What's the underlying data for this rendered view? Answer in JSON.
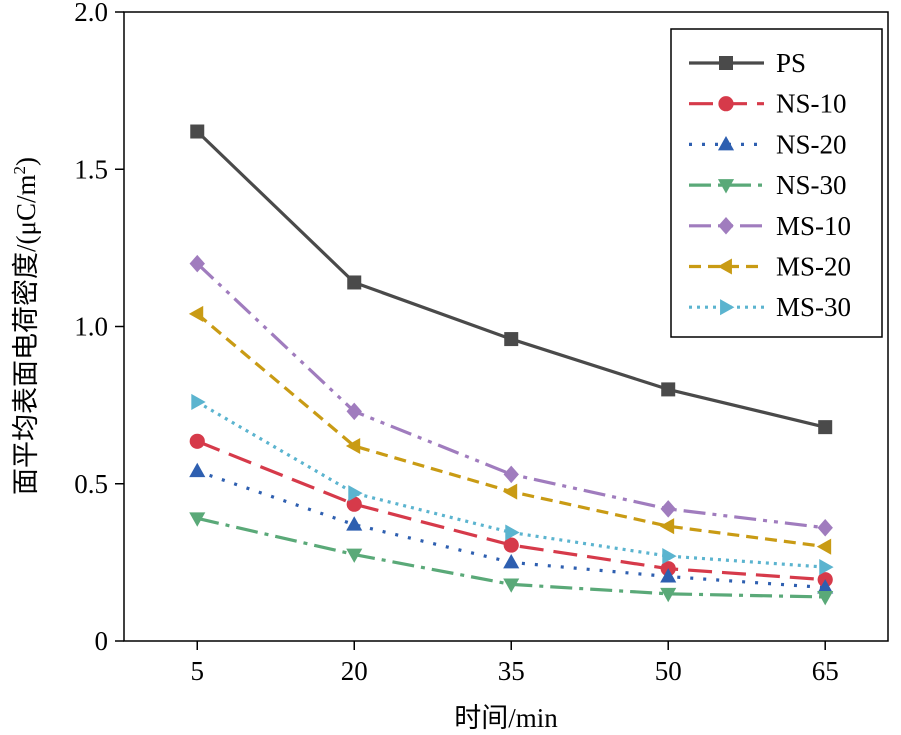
{
  "chart_data": {
    "type": "line",
    "title": "",
    "xlabel": "时间/min",
    "ylabel": "面平均表面电荷密度/(μC/m",
    "ylabel_sup": "2",
    "ylabel_close": ")",
    "x": [
      5,
      20,
      35,
      50,
      65
    ],
    "x_tick_labels": [
      "5",
      "20",
      "35",
      "50",
      "65"
    ],
    "xlim": [
      -2,
      71
    ],
    "ylim": [
      0,
      2.0
    ],
    "y_ticks": [
      0,
      0.5,
      1.0,
      1.5,
      2.0
    ],
    "y_tick_labels": [
      "0",
      "0.5",
      "1.0",
      "1.5",
      "2.0"
    ],
    "grid": false,
    "legend_position": "top-right",
    "series": [
      {
        "name": "PS",
        "values": [
          1.62,
          1.14,
          0.96,
          0.8,
          0.68
        ],
        "color": "#4a4a4a",
        "marker": "square",
        "dash": ""
      },
      {
        "name": "NS-10",
        "values": [
          0.635,
          0.435,
          0.305,
          0.23,
          0.195
        ],
        "color": "#d63a4a",
        "marker": "circle",
        "dash": "24,10"
      },
      {
        "name": "NS-20",
        "values": [
          0.54,
          0.37,
          0.25,
          0.205,
          0.17
        ],
        "color": "#2e5fb0",
        "marker": "triangle-up",
        "dash": "3,10"
      },
      {
        "name": "NS-30",
        "values": [
          0.39,
          0.275,
          0.18,
          0.15,
          0.14
        ],
        "color": "#5aa978",
        "marker": "triangle-down",
        "dash": "22,7,4,7"
      },
      {
        "name": "MS-10",
        "values": [
          1.2,
          0.73,
          0.53,
          0.42,
          0.36
        ],
        "color": "#a07cbe",
        "marker": "diamond",
        "dash": "22,7,4,7,4,7"
      },
      {
        "name": "MS-20",
        "values": [
          1.04,
          0.62,
          0.475,
          0.365,
          0.3
        ],
        "color": "#c99b14",
        "marker": "triangle-left",
        "dash": "12,7"
      },
      {
        "name": "MS-30",
        "values": [
          0.76,
          0.47,
          0.345,
          0.27,
          0.235
        ],
        "color": "#5bb4cf",
        "marker": "triangle-right",
        "dash": "3,5"
      }
    ]
  }
}
